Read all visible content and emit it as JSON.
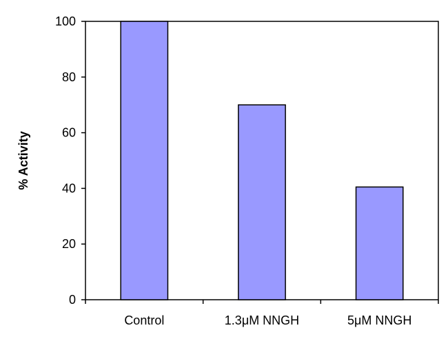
{
  "chart_data": {
    "type": "bar",
    "categories": [
      "Control",
      "1.3μM NNGH",
      "5μM NNGH"
    ],
    "values": [
      100,
      70,
      40.5
    ],
    "title": "",
    "xlabel": "",
    "ylabel": "% Activity",
    "ylim": [
      0,
      100
    ],
    "yticks": [
      0,
      20,
      40,
      60,
      80,
      100
    ],
    "ytick_labels": [
      "0",
      "20",
      "40",
      "60",
      "80",
      "100"
    ],
    "grid": false,
    "legend": "none",
    "bar_color": "#9999ff",
    "bar_edge_color": "#000000"
  }
}
